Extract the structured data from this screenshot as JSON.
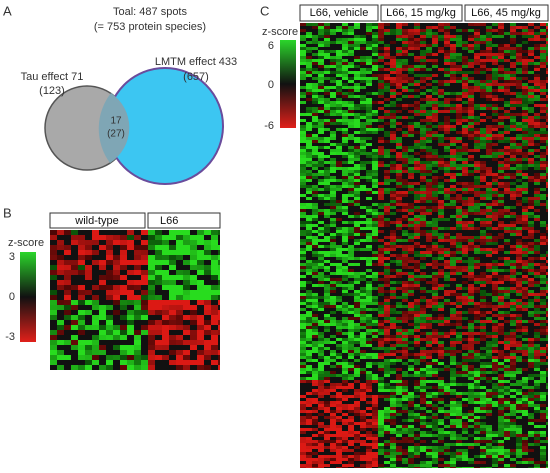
{
  "panel_a": {
    "label": "A",
    "title": "Toal: 487 spots",
    "subtitle": "(= 753 protein species)",
    "venn": {
      "left": {
        "label": "Tau effect 71",
        "sublabel": "(123)"
      },
      "right": {
        "label": "LMTM effect 433",
        "sublabel": "(657)"
      },
      "overlap": {
        "label": "17",
        "sublabel": "(27)"
      }
    }
  },
  "panel_b": {
    "label": "B",
    "colorbar": {
      "title": "z-score",
      "ticks": [
        "3",
        "0",
        "-3"
      ]
    },
    "groups": [
      "wild-type",
      "L66"
    ]
  },
  "panel_c": {
    "label": "C",
    "colorbar": {
      "title": "z-score",
      "ticks": [
        "6",
        "0",
        "-6"
      ]
    },
    "groups": [
      "L66, vehicle",
      "L66, 15 mg/kg",
      "L66, 45 mg/kg"
    ]
  }
}
